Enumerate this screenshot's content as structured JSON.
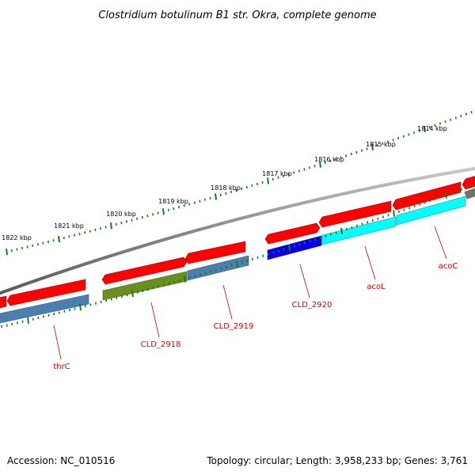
{
  "title": "Clostridium botulinum B1 str. Okra, complete genome",
  "footer": {
    "accession": "Accession: NC_010516",
    "summary": "Topology: circular; Length: 3,958,233 bp; Genes: 3,761"
  },
  "ruler": {
    "unit": "kbp",
    "labels": [
      "1822 kbp",
      "1821 kbp",
      "1820 kbp",
      "1819 kbp",
      "1818 kbp",
      "1817 kbp",
      "1816 kbp",
      "1815 kbp",
      "1814 kbp"
    ]
  },
  "colors": {
    "backbone": "#8a8a8a",
    "forward_feature": "#ff0000",
    "tick": "#1a7a1a",
    "label": "#cc0000",
    "cds_steelblue": "#4a7fb0",
    "cds_olive": "#6b8e23",
    "cds_blue": "#0000ee",
    "cds_cyan": "#00ffff"
  },
  "genes": [
    {
      "label": "thrC",
      "color": "steelblue"
    },
    {
      "label": "CLD_2918",
      "color": "olive"
    },
    {
      "label": "CLD_2919",
      "color": "steelblue"
    },
    {
      "label": "CLD_2920",
      "color": "blue"
    },
    {
      "label": "acoL",
      "color": "cyan"
    },
    {
      "label": "acoC",
      "color": "cyan"
    }
  ]
}
